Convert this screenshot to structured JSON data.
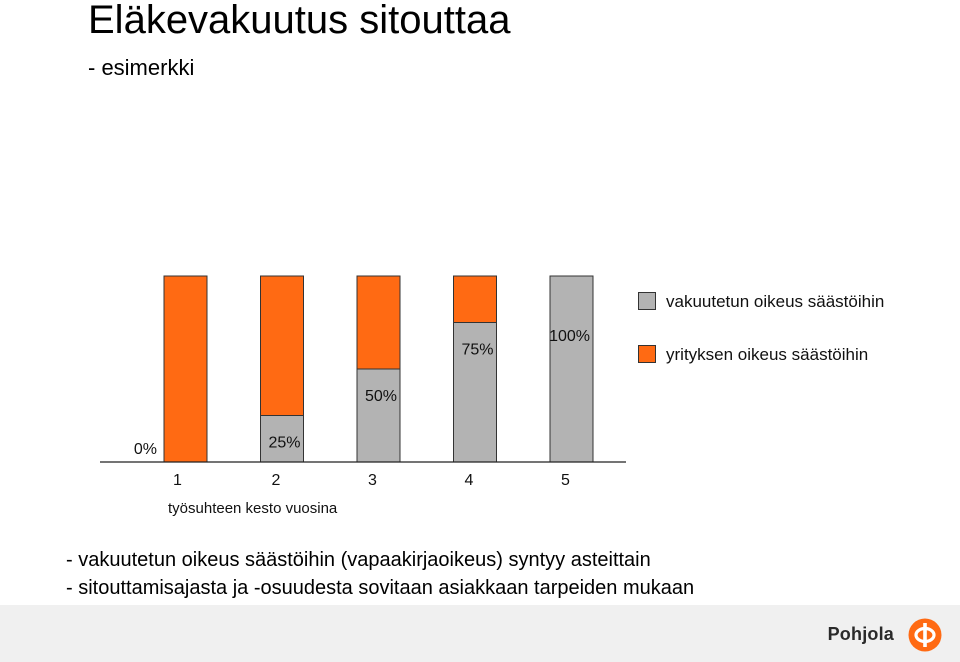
{
  "title": "Eläkevakuutus sitouttaa",
  "subtitle": "- esimerkki",
  "chart_data": {
    "type": "bar",
    "stacked": true,
    "categories": [
      "1",
      "2",
      "3",
      "4",
      "5"
    ],
    "xlabel": "työsuhteen kesto vuosina",
    "series": [
      {
        "name": "vakuutetun oikeus säästöihin",
        "color": "#b3b3b3",
        "values": [
          0,
          25,
          50,
          75,
          100
        ]
      },
      {
        "name": "yrityksen oikeus säästöihin",
        "color": "#ff6a13",
        "values": [
          100,
          75,
          50,
          25,
          0
        ]
      }
    ],
    "data_labels": [
      "0%",
      "25%",
      "50%",
      "75%",
      "100%"
    ],
    "ylim": [
      0,
      200
    ],
    "grid": false,
    "legend_position": "right"
  },
  "legend": {
    "items": [
      {
        "label": "vakuutetun oikeus säästöihin",
        "color": "#b3b3b3"
      },
      {
        "label": "yrityksen oikeus säästöihin",
        "color": "#ff6a13"
      }
    ]
  },
  "notes": [
    "- vakuutetun oikeus säästöihin (vapaakirjaoikeus) syntyy asteittain",
    "- sitouttamisajasta ja -osuudesta sovitaan asiakkaan tarpeiden mukaan"
  ],
  "footer": {
    "brand": "Pohjola",
    "brand_color": "#ff6a13",
    "band_color": "#f0f0f0"
  }
}
